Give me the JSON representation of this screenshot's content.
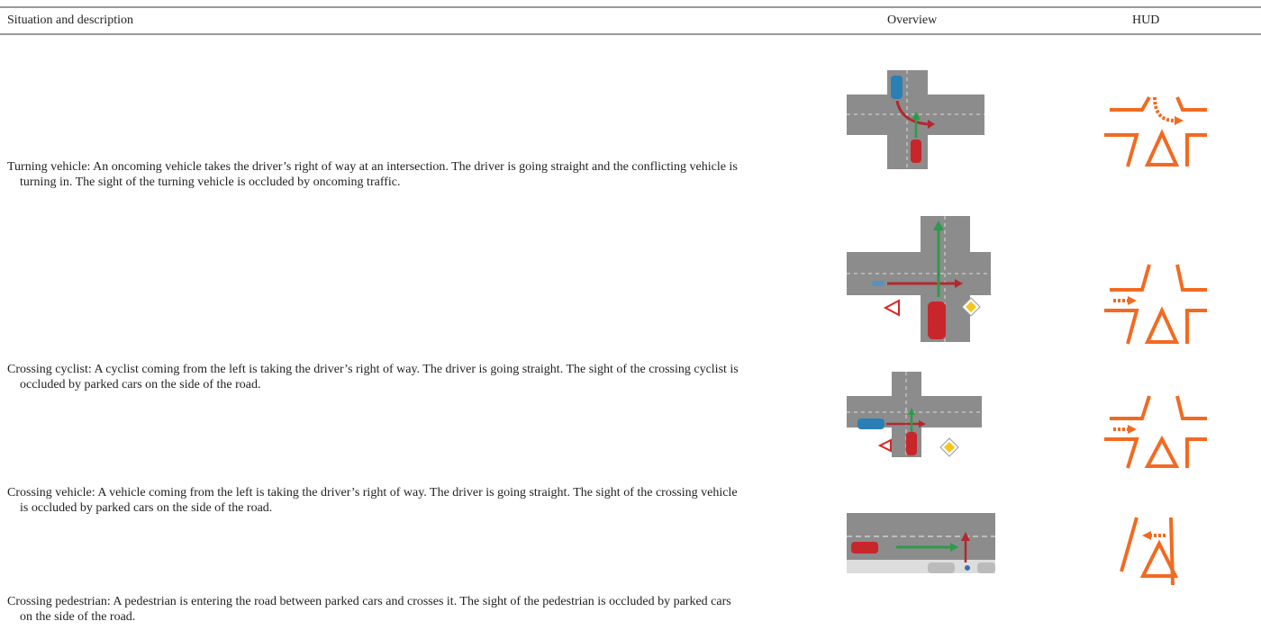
{
  "table": {
    "header": [
      "Situation and description",
      "Overview",
      "HUD"
    ],
    "rows": [
      {
        "description": "Turning vehicle: An oncoming vehicle takes the driver’s right of way at an intersection. The driver is going straight and the conflicting vehicle is turning in. The sight of the turning vehicle is occluded by oncoming traffic."
      },
      {
        "description": "Crossing cyclist: A cyclist coming from the left is taking the driver’s right of way. The driver is going straight. The sight of the crossing cyclist is occluded by parked cars on the side of the road."
      },
      {
        "description": "Crossing vehicle: A vehicle coming from the left is taking the driver’s right of way. The driver is going straight. The sight of the crossing vehicle is occluded by parked cars on the side of the road."
      },
      {
        "description": "Crossing pedestrian: A pedestrian is entering the road between parked cars and crosses it. The sight of the pedestrian is occluded by parked cars on the side of the road."
      }
    ]
  }
}
